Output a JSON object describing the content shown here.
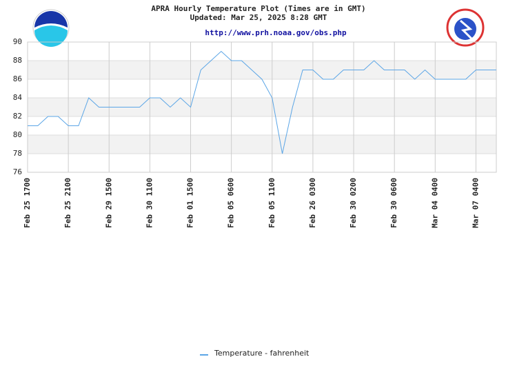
{
  "chart_data": {
    "type": "line",
    "title": "APRA Hourly Temperature Plot (Times are in GMT)",
    "subtitle": "Updated: Mar 25, 2025 8:28 GMT",
    "link": "http://www.prh.noaa.gov/obs.php",
    "categories": [
      "Feb 25 1700",
      null,
      null,
      null,
      "Feb 25 2100",
      null,
      null,
      null,
      "Feb 29 1500",
      null,
      null,
      null,
      "Feb 30 1100",
      null,
      null,
      null,
      "Feb 01 1500",
      null,
      null,
      null,
      "Feb 05 0600",
      null,
      null,
      null,
      "Feb 05 1100",
      null,
      null,
      null,
      "Feb 26 0300",
      null,
      null,
      null,
      "Feb 30 0200",
      null,
      null,
      null,
      "Feb 30 0600",
      null,
      null,
      null,
      "Mar 04 0400",
      null,
      null,
      null,
      "Mar 07 0400",
      null,
      null
    ],
    "series": [
      {
        "name": "Temperature - fahrenheit",
        "color": "#5aa5e6",
        "values": [
          81,
          81,
          82,
          82,
          81,
          81,
          84,
          83,
          83,
          83,
          83,
          83,
          84,
          84,
          83,
          84,
          83,
          87,
          88,
          89,
          88,
          88,
          87,
          86,
          84,
          78,
          83,
          87,
          87,
          86,
          86,
          87,
          87,
          87,
          88,
          87,
          87,
          87,
          86,
          87,
          86,
          86,
          86,
          86,
          87,
          87,
          87
        ]
      }
    ],
    "ylim": [
      76,
      90
    ],
    "yticks": [
      76,
      78,
      80,
      82,
      84,
      86,
      88,
      90
    ],
    "grid": true,
    "legend": "bottom"
  }
}
